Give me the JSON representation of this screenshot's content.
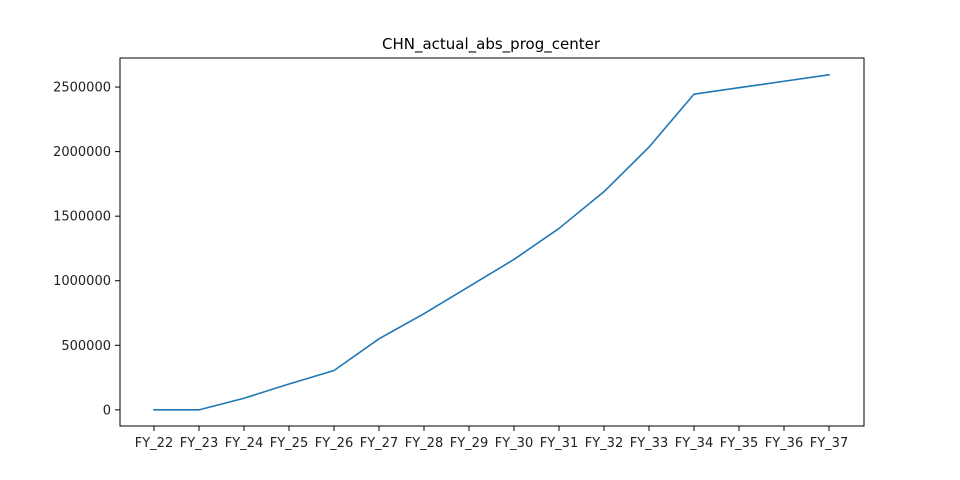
{
  "chart_data": {
    "type": "line",
    "title": "CHN_actual_abs_prog_center",
    "xlabel": "",
    "ylabel": "",
    "categories": [
      "FY_22",
      "FY_23",
      "FY_24",
      "FY_25",
      "FY_26",
      "FY_27",
      "FY_28",
      "FY_29",
      "FY_30",
      "FY_31",
      "FY_32",
      "FY_33",
      "FY_34",
      "FY_35",
      "FY_36",
      "FY_37"
    ],
    "series": [
      {
        "values": [
          0,
          0,
          90000,
          200000,
          305000,
          550000,
          745000,
          955000,
          1165000,
          1405000,
          1690000,
          2035000,
          2445000,
          2495000,
          2545000,
          2595000
        ],
        "color": "#1f77b4"
      }
    ],
    "ylim": [
      -125000,
      2725000
    ],
    "yticks": [
      0,
      500000,
      1000000,
      1500000,
      2000000,
      2500000
    ],
    "grid": false,
    "legend": "none"
  }
}
